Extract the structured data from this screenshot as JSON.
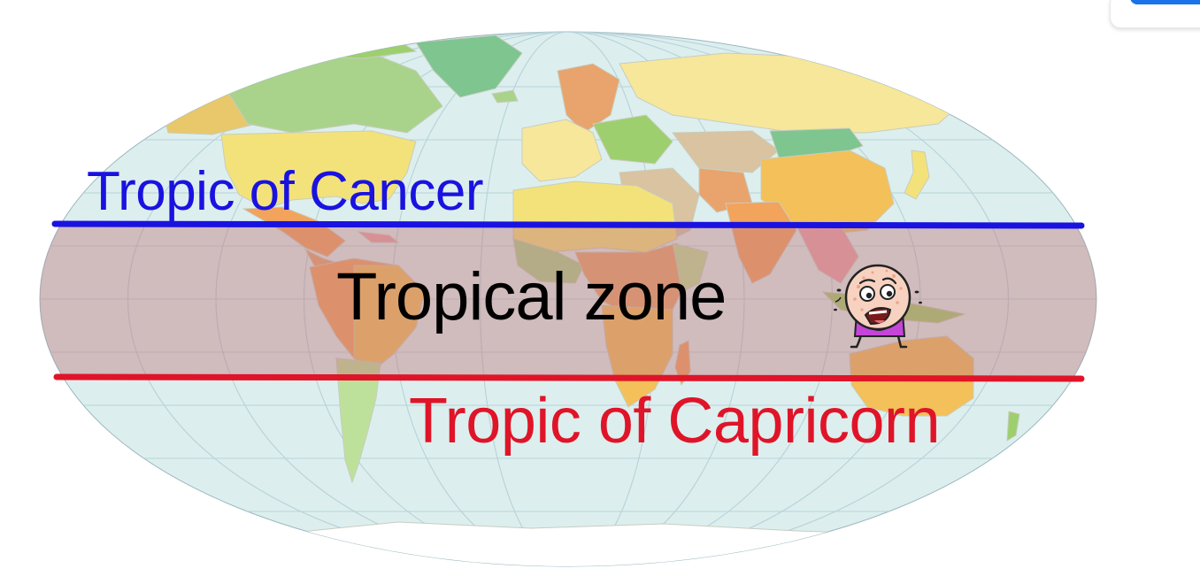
{
  "map": {
    "labels": {
      "tropic_of_cancer": "Tropic of Cancer",
      "tropical_zone": "Tropical zone",
      "tropic_of_capricorn": "Tropic of Capricorn"
    },
    "colors": {
      "ocean": "#dcefee",
      "land_palette": [
        "#e8c86a",
        "#f3e27a",
        "#9ecf6e",
        "#f2a35c",
        "#e8a46c",
        "#a9d38a",
        "#7ec58f",
        "#f3c05a",
        "#e9a0a8",
        "#bde19a",
        "#f7e79a",
        "#d9c3a0"
      ],
      "tropical_band": "#c07d80",
      "tropic_of_cancer": "#1a12e0",
      "tropic_of_capricorn": "#e01428",
      "tropical_zone_text": "#000000",
      "antarctica": "#ffffff",
      "graticule": "#b9d3da",
      "ui_accent": "#1a73e8"
    },
    "icons": {
      "character": "worried-sweating-cartoon-face-icon"
    }
  }
}
